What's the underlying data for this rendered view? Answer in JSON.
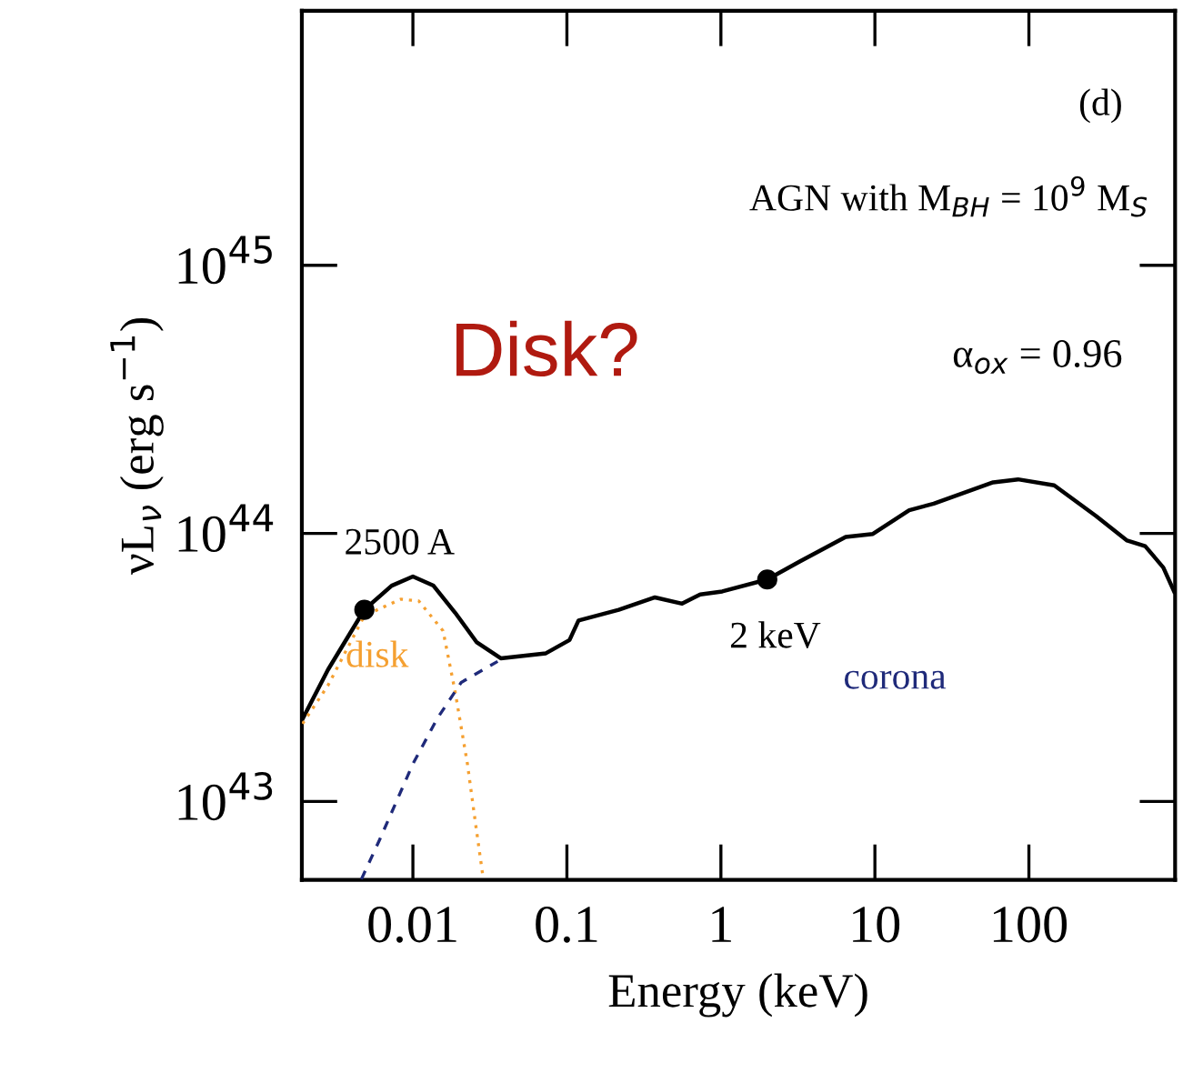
{
  "chart_data": {
    "type": "line",
    "xlabel": "Energy (keV)",
    "ylabel": "νL$_{ν}$ (erg s$^{−1}$)",
    "log": "xy",
    "xlim": [
      0.0019,
      890
    ],
    "ylim": [
      5.1e+42,
      8.9e+45
    ],
    "xticks": [
      0.01,
      0.1,
      1,
      10,
      100
    ],
    "yticks": [
      {
        "value": 1e+43,
        "label": "10$^{43}$"
      },
      {
        "value": 1e+44,
        "label": "10$^{44}$"
      },
      {
        "value": 1e+45,
        "label": "10$^{45}$"
      }
    ],
    "grid": false,
    "legend": false,
    "series": [
      {
        "color": "#000000",
        "line_style": "solid",
        "x": [
          0.00192,
          0.00281,
          0.00484,
          0.00728,
          0.01,
          0.0136,
          0.0188,
          0.026,
          0.0372,
          0.0731,
          0.104,
          0.119,
          0.217,
          0.373,
          0.56,
          0.734,
          1.02,
          2,
          3.27,
          6.46,
          9.7,
          16.7,
          24.1,
          58.6,
          85,
          146,
          273,
          434,
          569,
          746,
          877
        ],
        "values": [
          2.03e+43,
          3.1e+43,
          5.19e+43,
          6.38e+43,
          6.9e+43,
          6.38e+43,
          5.06e+43,
          3.92e+43,
          3.42e+43,
          3.57e+43,
          4e+43,
          4.73e+43,
          5.19e+43,
          5.77e+43,
          5.47e+43,
          5.92e+43,
          6.07e+43,
          6.73e+43,
          7.87e+43,
          9.7e+43,
          9.95e+43,
          1.22e+44,
          1.29e+44,
          1.55e+44,
          1.59e+44,
          1.51e+44,
          1.16e+44,
          9.4e+43,
          8.96e+43,
          7.46e+43,
          6.07e+43
        ]
      },
      {
        "name": "disk",
        "color": "#f5a031",
        "line_style": "dotted",
        "x": [
          0.00192,
          0.00281,
          0.00484,
          0.00834,
          0.0109,
          0.0157,
          0.0188,
          0.0226,
          0.0259,
          0.0283
        ],
        "values": [
          1.95e+43,
          2.71e+43,
          4.93e+43,
          5.68e+43,
          5.6e+43,
          4.33e+43,
          2.57e+43,
          1.38e+43,
          7.77e+42,
          5.4e+42
        ]
      },
      {
        "name": "corona",
        "color": "#1f2a7a",
        "line_style": "dashed",
        "x": [
          0.00463,
          0.00607,
          0.01,
          0.0144,
          0.0206,
          0.0355
        ],
        "values": [
          5.13e+42,
          7.18e+42,
          1.38e+43,
          2.04e+43,
          2.78e+43,
          3.33e+43
        ]
      },
      {
        "type": "scatter",
        "color": "#000000",
        "marker": "circle",
        "x": [
          0.00484,
          2
        ],
        "values": [
          5.19e+43,
          6.73e+43
        ]
      }
    ],
    "annotations": [
      "(d)",
      "AGN with M$_{BH}$ = 10$^{9}$ M$_{S}$",
      "α$_{ox}$ = 0.96",
      "Disk?",
      {
        "text": "2500 A",
        "x": 0.00484,
        "y": 5.19e+43
      },
      {
        "text": "2 keV",
        "x": 2,
        "y": 6.73e+43
      }
    ]
  }
}
